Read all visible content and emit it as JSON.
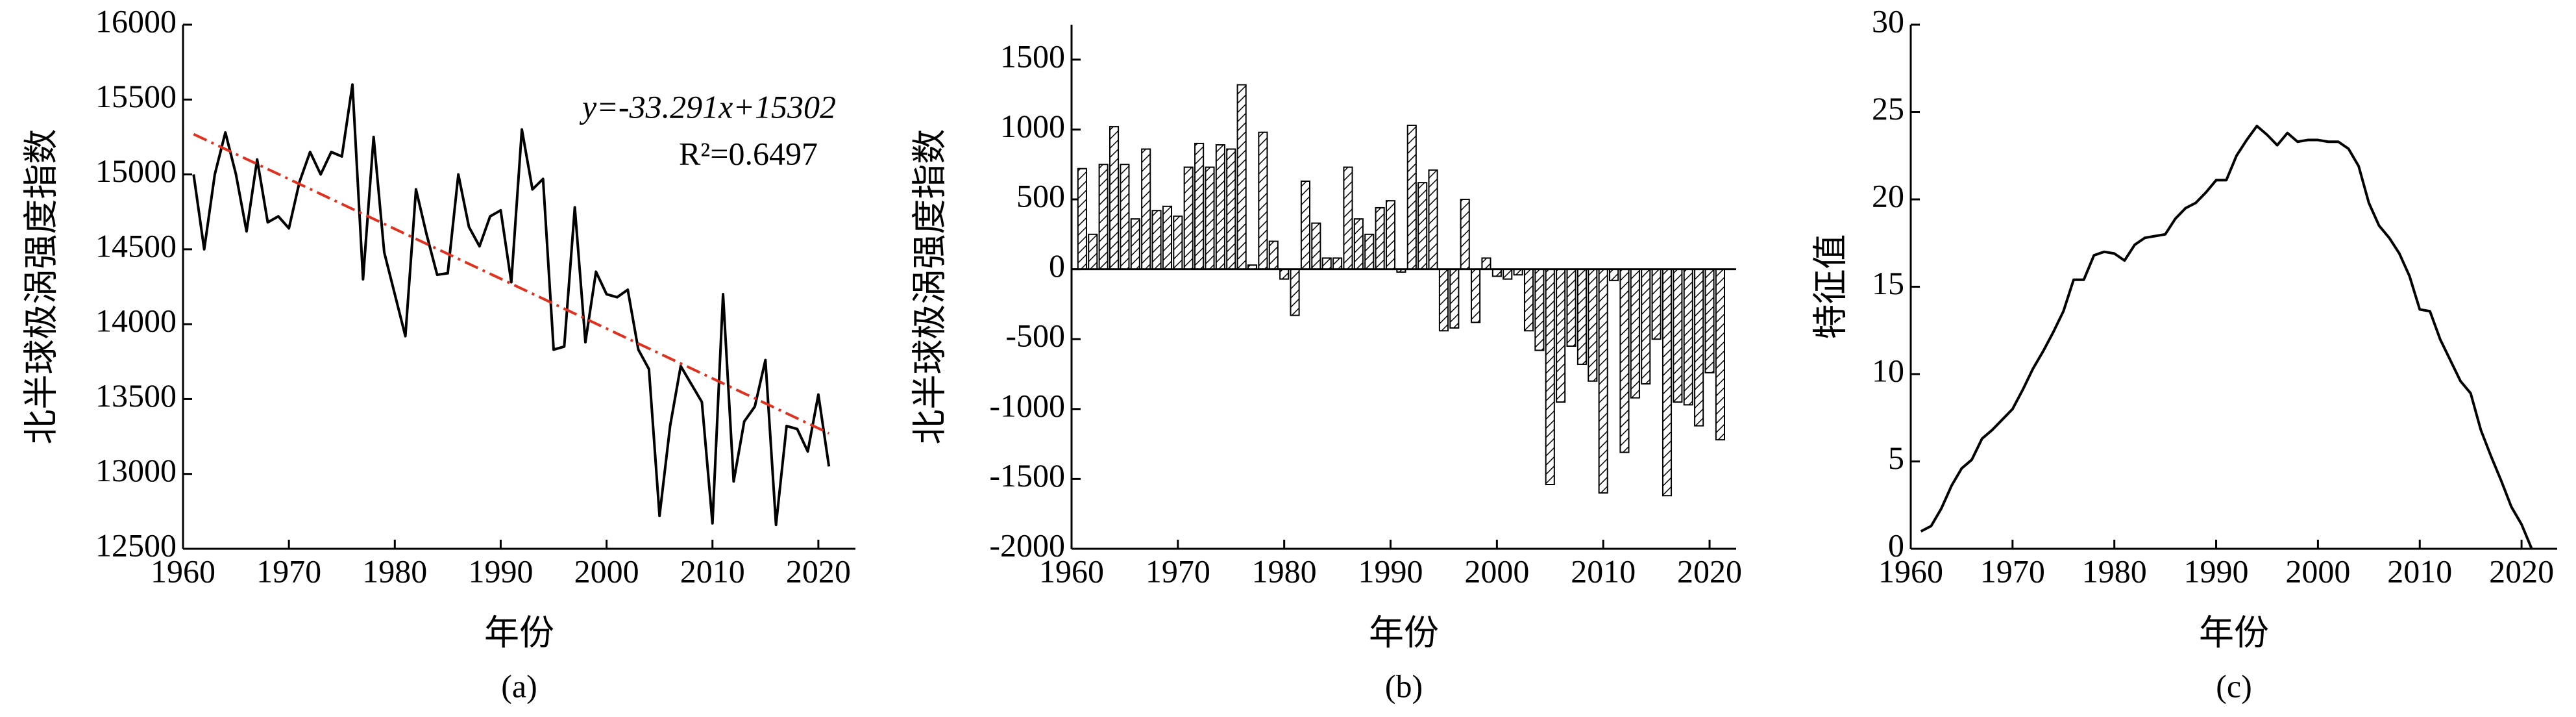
{
  "chart_data": [
    {
      "type": "line",
      "caption": "(a)",
      "xlabel": "年份",
      "ylabel": "北半球极涡强度指数",
      "x": [
        1961,
        1962,
        1963,
        1964,
        1965,
        1966,
        1967,
        1968,
        1969,
        1970,
        1971,
        1972,
        1973,
        1974,
        1975,
        1976,
        1977,
        1978,
        1979,
        1980,
        1981,
        1982,
        1983,
        1984,
        1985,
        1986,
        1987,
        1988,
        1989,
        1990,
        1991,
        1992,
        1993,
        1994,
        1995,
        1996,
        1997,
        1998,
        1999,
        2000,
        2001,
        2002,
        2003,
        2004,
        2005,
        2006,
        2007,
        2008,
        2009,
        2010,
        2011,
        2012,
        2013,
        2014,
        2015,
        2016,
        2017,
        2018,
        2019,
        2020,
        2021
      ],
      "series": [
        {
          "color": "#000000",
          "values": [
            15000,
            14500,
            15000,
            15280,
            15000,
            14620,
            15100,
            14680,
            14720,
            14640,
            14950,
            15150,
            15000,
            15150,
            15120,
            15600,
            14300,
            15250,
            14480,
            14200,
            13920,
            14900,
            14600,
            14330,
            14340,
            15000,
            14650,
            14520,
            14720,
            14760,
            14280,
            15300,
            14900,
            14970,
            13830,
            13850,
            14780,
            13880,
            14350,
            14200,
            14180,
            14230,
            13830,
            13700,
            12720,
            13320,
            13720,
            13600,
            13480,
            12670,
            14200,
            12950,
            13350,
            13450,
            13760,
            12660,
            13320,
            13300,
            13150,
            13530,
            13050
          ]
        }
      ],
      "trendline": {
        "slope": -33.291,
        "intercept": 15302,
        "color": "#e0301e"
      },
      "annotations": [
        "y=-33.291x+15302",
        "R²=0.6497"
      ],
      "xlim": [
        1960,
        2023.5
      ],
      "ylim": [
        12500,
        16000
      ],
      "xticks": [
        1960,
        1970,
        1980,
        1990,
        2000,
        2010,
        2020
      ],
      "yticks": [
        12500,
        13000,
        13500,
        14000,
        14500,
        15000,
        15500,
        16000
      ]
    },
    {
      "type": "bar",
      "caption": "(b)",
      "xlabel": "年份",
      "ylabel": "北半球极涡强度指数",
      "x": [
        1961,
        1962,
        1963,
        1964,
        1965,
        1966,
        1967,
        1968,
        1969,
        1970,
        1971,
        1972,
        1973,
        1974,
        1975,
        1976,
        1977,
        1978,
        1979,
        1980,
        1981,
        1982,
        1983,
        1984,
        1985,
        1986,
        1987,
        1988,
        1989,
        1990,
        1991,
        1992,
        1993,
        1994,
        1995,
        1996,
        1997,
        1998,
        1999,
        2000,
        2001,
        2002,
        2003,
        2004,
        2005,
        2006,
        2007,
        2008,
        2009,
        2010,
        2011,
        2012,
        2013,
        2014,
        2015,
        2016,
        2017,
        2018,
        2019,
        2020,
        2021
      ],
      "series": [
        {
          "color": "#000000",
          "values": [
            720,
            250,
            750,
            1020,
            750,
            360,
            860,
            420,
            450,
            380,
            730,
            900,
            730,
            890,
            860,
            1320,
            30,
            980,
            200,
            -70,
            -330,
            630,
            330,
            80,
            80,
            730,
            360,
            250,
            440,
            490,
            -20,
            1030,
            620,
            710,
            -440,
            -420,
            500,
            -380,
            80,
            -50,
            -70,
            -40,
            -440,
            -580,
            -1540,
            -950,
            -550,
            -680,
            -800,
            -1600,
            -80,
            -1310,
            -920,
            -820,
            -500,
            -1620,
            -950,
            -970,
            -1120,
            -740,
            -1220
          ]
        }
      ],
      "xlim": [
        1960,
        2022.5
      ],
      "ylim": [
        -2000,
        1750
      ],
      "xticks": [
        1960,
        1970,
        1980,
        1990,
        2000,
        2010,
        2020
      ],
      "yticks": [
        -2000,
        -1500,
        -1000,
        -500,
        0,
        500,
        1000,
        1500
      ]
    },
    {
      "type": "line",
      "caption": "(c)",
      "xlabel": "年份",
      "ylabel": "特征值",
      "x": [
        1961,
        1962,
        1963,
        1964,
        1965,
        1966,
        1967,
        1968,
        1969,
        1970,
        1971,
        1972,
        1973,
        1974,
        1975,
        1976,
        1977,
        1978,
        1979,
        1980,
        1981,
        1982,
        1983,
        1984,
        1985,
        1986,
        1987,
        1988,
        1989,
        1990,
        1991,
        1992,
        1993,
        1994,
        1995,
        1996,
        1997,
        1998,
        1999,
        2000,
        2001,
        2002,
        2003,
        2004,
        2005,
        2006,
        2007,
        2008,
        2009,
        2010,
        2011,
        2012,
        2013,
        2014,
        2015,
        2016,
        2017,
        2018,
        2019,
        2020,
        2021
      ],
      "series": [
        {
          "color": "#000000",
          "values": [
            1,
            1.3,
            2.3,
            3.6,
            4.6,
            5.1,
            6.3,
            6.8,
            7.4,
            8,
            9.1,
            10.3,
            11.3,
            12.4,
            13.6,
            15.4,
            15.4,
            16.8,
            17,
            16.9,
            16.5,
            17.4,
            17.8,
            17.9,
            18,
            18.9,
            19.5,
            19.8,
            20.4,
            21.1,
            21.1,
            22.5,
            23.4,
            24.2,
            23.7,
            23.1,
            23.8,
            23.3,
            23.4,
            23.4,
            23.3,
            23.3,
            22.9,
            21.9,
            19.8,
            18.5,
            17.8,
            16.9,
            15.6,
            13.7,
            13.6,
            12,
            10.8,
            9.6,
            8.9,
            6.8,
            5.3,
            3.9,
            2.4,
            1.4,
            0
          ]
        }
      ],
      "xlim": [
        1960,
        2023.5
      ],
      "ylim": [
        0,
        30
      ],
      "xticks": [
        1960,
        1970,
        1980,
        1990,
        2000,
        2010,
        2020
      ],
      "yticks": [
        0,
        5,
        10,
        15,
        20,
        25,
        30
      ]
    }
  ]
}
